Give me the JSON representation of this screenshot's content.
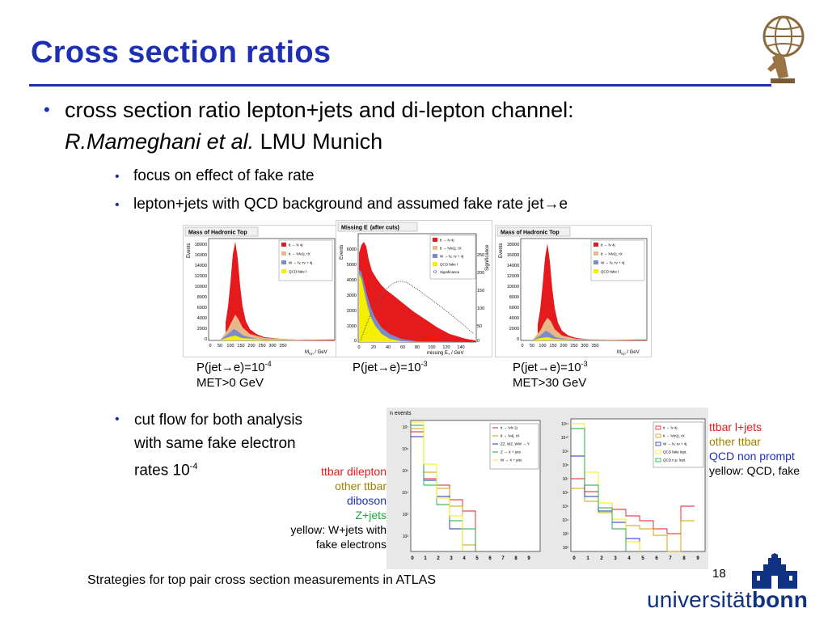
{
  "title": "Cross section ratios",
  "bullets": {
    "main_line1": "cross section ratio lepton+jets and di-lepton channel:",
    "main_author": "R.Mameghani et al.",
    "main_affil": "LMU Munich",
    "sub1": "focus on effect of fake rate",
    "sub2": "lepton+jets with QCD background and assumed fake rate jet→e",
    "cutflow_line1": "cut flow for both analysis",
    "cutflow_line2": "with same fake electron",
    "cutflow_line3_pre": "rates 10",
    "cutflow_exp": "-4"
  },
  "plots": {
    "p1_title": "Mass of Hadronic Top",
    "p2_title": "Missing E",
    "p2_title_suffix": "(after cuts)",
    "p3_title": "Mass of Hadronic Top",
    "events_label": "Events",
    "signif_label": "Significance",
    "mtop_label": "M",
    "mtop_sub": "top",
    "mtop_unit": " / GeV",
    "met_xlabel": "missing E",
    "met_xsub": "T",
    "met_unit": " / GeV",
    "hist_yticks": [
      "18000",
      "16000",
      "14000",
      "12000",
      "10000",
      "8000",
      "6000",
      "4000",
      "2000",
      "0"
    ],
    "hist_xticks": [
      "0",
      "50",
      "100",
      "150",
      "200",
      "250",
      "300",
      "350"
    ],
    "met_yticks": [
      "6000",
      "5000",
      "4000",
      "3000",
      "2000",
      "1000",
      "0"
    ],
    "met_xticks": [
      "0",
      "20",
      "40",
      "60",
      "80",
      "100",
      "120",
      "140"
    ],
    "met_sig_ticks": [
      "250",
      "200",
      "150",
      "100",
      "50",
      "0"
    ],
    "legend_hist": [
      "tt → lv 4j",
      "tt → lvlv2j, τX",
      "W → lv, τv + 4j",
      "QCD fake l"
    ],
    "legend_met": [
      "tt → lv 4j",
      "tt → lvlv2j, τX",
      "W → lv, τv + 4j",
      "QCD fake l",
      "Significance"
    ],
    "cf_label": "n events",
    "cf_left_yticks": [
      "10⁷",
      "10⁶",
      "10⁵",
      "10⁴",
      "10³",
      "10²"
    ],
    "cf_right_yticks": [
      "10¹¹",
      "10¹⁰",
      "10⁹",
      "10⁸",
      "10⁷",
      "10⁶",
      "10⁵",
      "10⁴",
      "10³",
      "10²"
    ],
    "cf_xticks": [
      "0",
      "1",
      "2",
      "3",
      "4",
      "5",
      "6",
      "7",
      "8",
      "9"
    ],
    "cf_left_legend": [
      "tt → lvlv 2j",
      "tt → lv4j, τX",
      "ZZ, WZ, WW → Y",
      "Z → X + jets",
      "W → X + jets"
    ],
    "cf_right_legend": [
      "tt → lv 4j",
      "tt → lvlv2j, τX",
      "W → lv, τv + 4j",
      "QCD fake lept.",
      "QCD n.p. lept."
    ]
  },
  "captions": {
    "c1_line1_pre": "P(jet→e)=10",
    "c1_exp": "-4",
    "c1_line2": "MET>0 GeV",
    "c2_line1_pre": "P(jet→e)=10",
    "c2_exp": "-3",
    "c3_line1_pre": "P(jet→e)=10",
    "c3_exp": "-3",
    "c3_line2": "MET>30 GeV"
  },
  "legend_left": {
    "l1": "ttbar dilepton",
    "l2": "other ttbar",
    "l3": "diboson",
    "l4": "Z+jets",
    "l5": "yellow: W+jets with",
    "l6": "fake electrons"
  },
  "legend_right": {
    "l1": "ttbar l+jets",
    "l2": "other ttbar",
    "l3": "QCD non prompt",
    "l4": "yellow: QCD, fake"
  },
  "footer": "Strategies for top pair cross section measurements in ATLAS",
  "page_number": "18",
  "university": {
    "text_regular": "universität",
    "text_bold": "bonn"
  },
  "colors": {
    "title_blue": "#1f2fb4",
    "ttbar_red": "#e41a1c",
    "other_ttbar_olive": "#a08000",
    "diboson_blue": "#1f2fb4",
    "zjets_green": "#1aaa3a",
    "qcd_yellow": "#f5f000",
    "bonn_blue": "#0f3282"
  }
}
